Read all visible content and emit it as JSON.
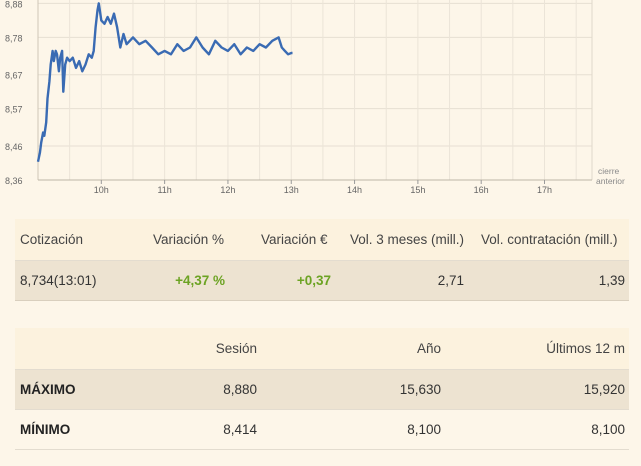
{
  "chart_data": {
    "type": "line",
    "y_ticks": [
      "8,36",
      "8,46",
      "8,57",
      "8,67",
      "8,78",
      "8,88"
    ],
    "y_tick_values": [
      8.36,
      8.46,
      8.57,
      8.67,
      8.78,
      8.88
    ],
    "ylim": [
      8.36,
      8.89
    ],
    "x_ticks": [
      "10h",
      "11h",
      "12h",
      "13h",
      "14h",
      "15h",
      "16h",
      "17h"
    ],
    "x_tick_hours": [
      10,
      11,
      12,
      13,
      14,
      15,
      16,
      17
    ],
    "xlim": [
      9.0,
      17.75
    ],
    "end_label_line1": "cierre",
    "end_label_line2": "anterior",
    "grid": true,
    "line_color": "#3a6bb3",
    "series": [
      {
        "x": [
          9.0,
          9.03,
          9.05,
          9.08,
          9.1,
          9.13,
          9.15,
          9.18,
          9.2,
          9.23,
          9.25,
          9.28,
          9.3,
          9.33,
          9.35,
          9.38,
          9.4,
          9.43,
          9.46,
          9.5,
          9.55,
          9.6,
          9.65,
          9.7,
          9.75,
          9.8,
          9.85,
          9.88,
          9.91,
          9.94,
          9.96,
          10.0,
          10.05,
          10.1,
          10.15,
          10.2,
          10.25,
          10.3,
          10.35,
          10.4,
          10.45,
          10.5,
          10.6,
          10.7,
          10.8,
          10.9,
          11.0,
          11.1,
          11.2,
          11.3,
          11.4,
          11.5,
          11.6,
          11.7,
          11.8,
          11.9,
          12.0,
          12.1,
          12.2,
          12.3,
          12.4,
          12.5,
          12.6,
          12.7,
          12.8,
          12.85,
          12.9,
          12.95,
          13.0,
          13.02
        ],
        "y": [
          8.414,
          8.44,
          8.47,
          8.5,
          8.49,
          8.53,
          8.6,
          8.65,
          8.7,
          8.74,
          8.71,
          8.74,
          8.73,
          8.68,
          8.72,
          8.74,
          8.62,
          8.7,
          8.72,
          8.71,
          8.72,
          8.69,
          8.71,
          8.68,
          8.7,
          8.73,
          8.72,
          8.74,
          8.81,
          8.86,
          8.88,
          8.83,
          8.82,
          8.84,
          8.82,
          8.85,
          8.81,
          8.75,
          8.79,
          8.76,
          8.77,
          8.78,
          8.76,
          8.77,
          8.75,
          8.73,
          8.74,
          8.73,
          8.76,
          8.74,
          8.75,
          8.78,
          8.75,
          8.73,
          8.77,
          8.75,
          8.74,
          8.76,
          8.73,
          8.75,
          8.74,
          8.76,
          8.75,
          8.77,
          8.78,
          8.75,
          8.74,
          8.73,
          8.734,
          8.734
        ]
      }
    ]
  },
  "quote": {
    "headers": [
      "Cotización",
      "Variación %",
      "Variación €",
      "Vol. 3 meses (mill.)",
      "Vol. contratación (mill.)"
    ],
    "values": [
      "8,734(13:01)",
      "+4,37 %",
      "+0,37",
      "2,71",
      "1,39"
    ]
  },
  "range": {
    "headers": [
      "",
      "Sesión",
      "Año",
      "Últimos 12 m"
    ],
    "rows": [
      {
        "label": "MÁXIMO",
        "values": [
          "8,880",
          "15,630",
          "15,920"
        ]
      },
      {
        "label": "MÍNIMO",
        "values": [
          "8,414",
          "8,100",
          "8,100"
        ]
      }
    ]
  }
}
